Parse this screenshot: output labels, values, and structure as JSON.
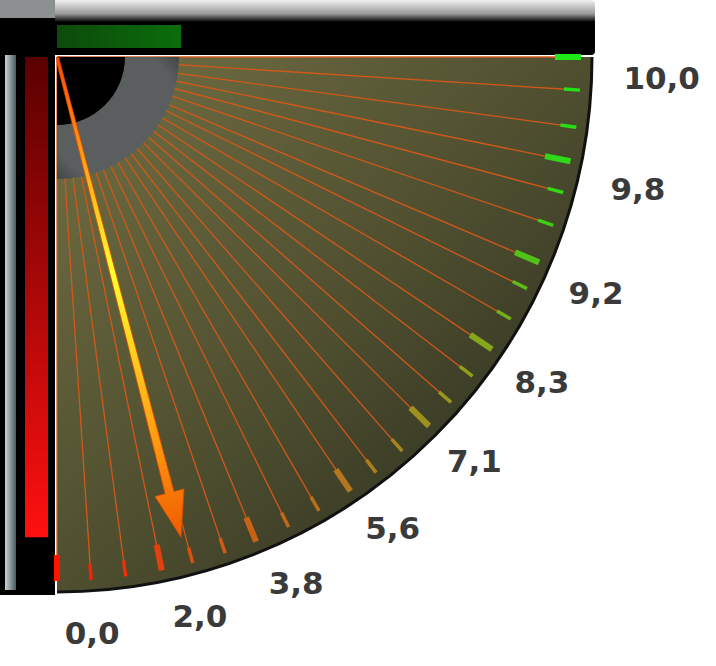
{
  "chart_data": {
    "type": "gauge",
    "value": 2.5,
    "range": [
      0,
      10
    ],
    "ticks": [
      {
        "value": 0,
        "label": "0,0"
      },
      {
        "value": 2.0,
        "label": "2,0"
      },
      {
        "value": 3.8,
        "label": "3,8"
      },
      {
        "value": 5.6,
        "label": "5,6"
      },
      {
        "value": 7.1,
        "label": "7,1"
      },
      {
        "value": 8.3,
        "label": "8,3"
      },
      {
        "value": 9.2,
        "label": "9,2"
      },
      {
        "value": 9.8,
        "label": "9,8"
      },
      {
        "value": 10.0,
        "label": "10,0"
      }
    ],
    "minor_ticks": [
      0.65,
      1.31,
      2.59,
      3.21,
      4.42,
      5.0,
      6.09,
      6.59,
      7.52,
      7.93,
      8.66,
      8.97,
      9.47,
      9.66,
      9.91,
      9.98
    ]
  }
}
